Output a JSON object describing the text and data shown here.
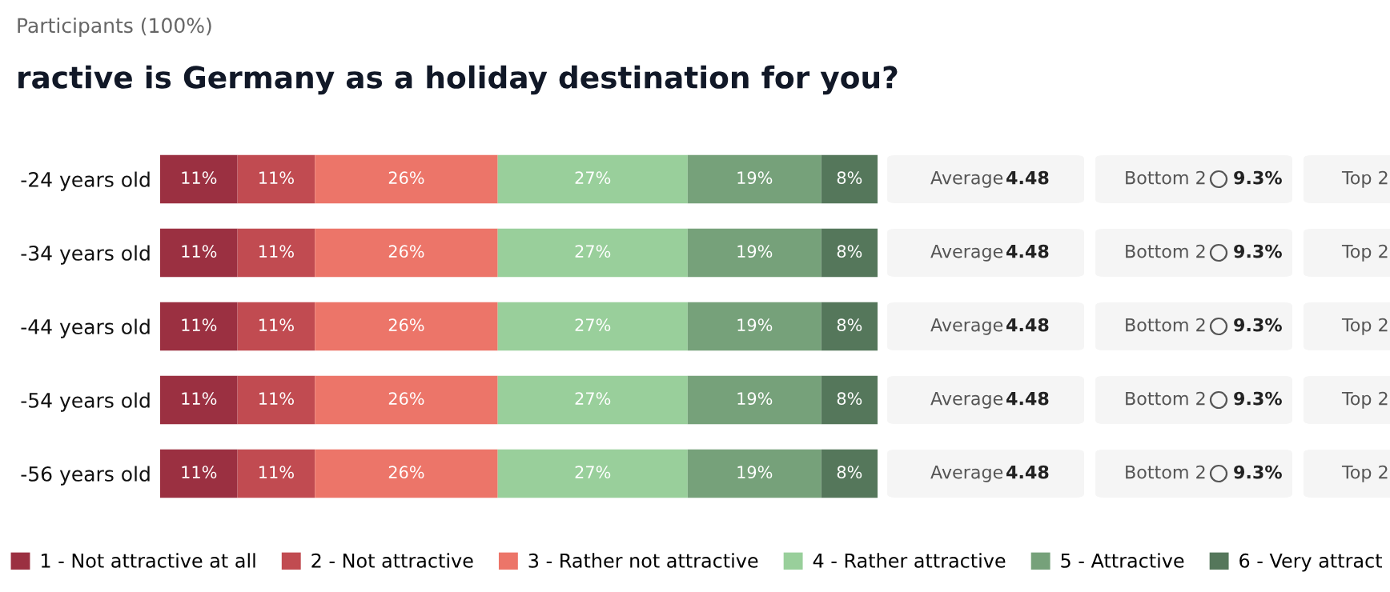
{
  "chart_data": {
    "type": "bar",
    "orientation": "horizontal",
    "stacked": true,
    "legend": "bottom",
    "subtitle": "Participants (100%)",
    "title": "ractive is Germany as a holiday destination for you?",
    "categories": [
      "-24 years old",
      "-34 years old",
      "-44 years old",
      "-54 years old",
      "-56 years old"
    ],
    "series": [
      {
        "name": "1 - Not attractive at all",
        "color": "#9b3041",
        "values": [
          11,
          11,
          11,
          11,
          11
        ],
        "value_labels": [
          "11%",
          "11%",
          "11%",
          "11%",
          "11%"
        ]
      },
      {
        "name": "2 - Not attractive",
        "color": "#c14b51",
        "values": [
          11,
          11,
          11,
          11,
          11
        ],
        "value_labels": [
          "11%",
          "11%",
          "11%",
          "11%",
          "11%"
        ]
      },
      {
        "name": "3 - Rather not attractive",
        "color": "#ec7569",
        "values": [
          26,
          26,
          26,
          26,
          26
        ],
        "value_labels": [
          "26%",
          "26%",
          "26%",
          "26%",
          "26%"
        ]
      },
      {
        "name": "4 - Rather attractive",
        "color": "#99cf9b",
        "values": [
          27,
          27,
          27,
          27,
          27
        ],
        "value_labels": [
          "27%",
          "27%",
          "27%",
          "27%",
          "27%"
        ]
      },
      {
        "name": "5 - Attractive",
        "color": "#76a17a",
        "values": [
          19,
          19,
          19,
          19,
          19
        ],
        "value_labels": [
          "19%",
          "19%",
          "19%",
          "19%",
          "19%"
        ]
      },
      {
        "name": "6 - Very attract",
        "color": "#55775b",
        "values": [
          8,
          8,
          8,
          8,
          8
        ],
        "value_labels": [
          "8%",
          "8%",
          "8%",
          "8%",
          "8%"
        ]
      }
    ],
    "annotations": [
      "Average 4.48",
      "Bottom 2 9.3%",
      "Top 2",
      "Average 4.48",
      "Bottom 2 9.3%",
      "Top 2",
      "Average 4.48",
      "Bottom 2 9.3%",
      "Top 2",
      "Average 4.48",
      "Bottom 2 9.3%",
      "Top 2",
      "Average 4.48",
      "Bottom 2 9.3%",
      "Top 2"
    ]
  }
}
